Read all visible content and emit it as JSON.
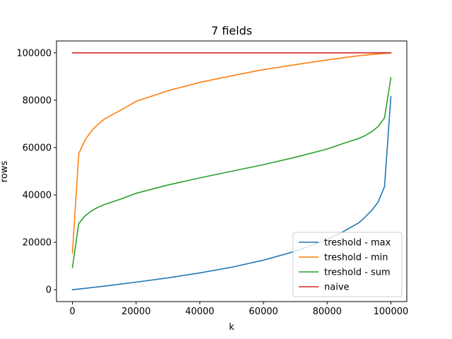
{
  "chart_data": {
    "type": "line",
    "title": "7 fields",
    "xlabel": "k",
    "ylabel": "rows",
    "xlim": [
      -5000,
      105000
    ],
    "ylim": [
      -5000,
      105000
    ],
    "x_ticks": [
      0,
      20000,
      40000,
      60000,
      80000,
      100000
    ],
    "y_ticks": [
      0,
      20000,
      40000,
      60000,
      80000,
      100000
    ],
    "x_tick_labels": [
      "0",
      "20000",
      "40000",
      "60000",
      "80000",
      "100000"
    ],
    "y_tick_labels": [
      "0",
      "20000",
      "40000",
      "60000",
      "80000",
      "100000"
    ],
    "grid": false,
    "legend_position": "lower-right",
    "series": [
      {
        "name": "treshold - max",
        "color": "#1f77b4",
        "x": [
          0,
          10000,
          20000,
          30000,
          40000,
          50000,
          60000,
          70000,
          80000,
          85000,
          90000,
          92000,
          94000,
          96000,
          98000,
          100000
        ],
        "y": [
          0,
          1500,
          3200,
          5000,
          7100,
          9500,
          12500,
          16200,
          21200,
          24500,
          28300,
          30800,
          33500,
          37000,
          43500,
          81500
        ]
      },
      {
        "name": "treshold - min",
        "color": "#ff7f0e",
        "x": [
          0,
          2000,
          4000,
          6000,
          8000,
          10000,
          15000,
          20000,
          30000,
          40000,
          50000,
          60000,
          70000,
          80000,
          90000,
          100000
        ],
        "y": [
          15500,
          57500,
          63300,
          67000,
          69800,
          72000,
          75700,
          79500,
          84000,
          87500,
          90300,
          92900,
          95000,
          97000,
          98800,
          100000
        ]
      },
      {
        "name": "treshold - sum",
        "color": "#2ca02c",
        "x": [
          0,
          2000,
          4000,
          6000,
          8000,
          10000,
          15000,
          20000,
          30000,
          40000,
          50000,
          60000,
          70000,
          80000,
          85000,
          90000,
          92000,
          94000,
          96000,
          98000,
          100000
        ],
        "y": [
          9300,
          28000,
          31200,
          33300,
          34800,
          35900,
          38200,
          40700,
          44200,
          47200,
          50000,
          52800,
          55900,
          59400,
          61700,
          63900,
          65100,
          66700,
          68900,
          72500,
          89500
        ]
      },
      {
        "name": "naive",
        "color": "#d62728",
        "x": [
          0,
          100000
        ],
        "y": [
          100000,
          100000
        ]
      }
    ]
  }
}
